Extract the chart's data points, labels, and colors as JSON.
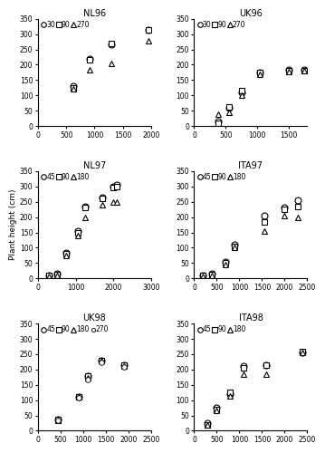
{
  "panels": [
    {
      "title": "NL96",
      "legend_labels": [
        "30",
        "90",
        "270"
      ],
      "markers": [
        "o",
        "s",
        "^"
      ],
      "xlim": [
        0,
        2000
      ],
      "ylim": [
        0,
        350
      ],
      "xticks": [
        0,
        500,
        1000,
        1500,
        2000
      ],
      "yticks": [
        0,
        50,
        100,
        150,
        200,
        250,
        300,
        350
      ],
      "series": [
        {
          "x": [
            620,
            920,
            1300,
            1950
          ],
          "y": [
            130,
            220,
            265,
            315
          ]
        },
        {
          "x": [
            620,
            920,
            1300,
            1950
          ],
          "y": [
            125,
            215,
            270,
            315
          ]
        },
        {
          "x": [
            620,
            920,
            1300,
            1950
          ],
          "y": [
            120,
            185,
            205,
            278
          ]
        }
      ]
    },
    {
      "title": "UK96",
      "legend_labels": [
        "30",
        "90",
        "270"
      ],
      "markers": [
        "o",
        "s",
        "^"
      ],
      "xlim": [
        0,
        1800
      ],
      "ylim": [
        0,
        350
      ],
      "xticks": [
        0,
        500,
        1000,
        1500
      ],
      "yticks": [
        0,
        50,
        100,
        150,
        200,
        250,
        300,
        350
      ],
      "series": [
        {
          "x": [
            380,
            550,
            750,
            1050,
            1500,
            1750
          ],
          "y": [
            15,
            60,
            110,
            175,
            183,
            183
          ]
        },
        {
          "x": [
            380,
            550,
            750,
            1050,
            1500,
            1750
          ],
          "y": [
            10,
            62,
            115,
            175,
            182,
            182
          ]
        },
        {
          "x": [
            380,
            550,
            750,
            1050,
            1500,
            1750
          ],
          "y": [
            40,
            45,
            100,
            170,
            178,
            180
          ]
        }
      ]
    },
    {
      "title": "NL97",
      "legend_labels": [
        "45",
        "90",
        "180"
      ],
      "markers": [
        "o",
        "s",
        "^"
      ],
      "xlim": [
        0,
        3000
      ],
      "ylim": [
        0,
        350
      ],
      "xticks": [
        0,
        1000,
        2000,
        3000
      ],
      "yticks": [
        0,
        50,
        100,
        150,
        200,
        250,
        300,
        350
      ],
      "series": [
        {
          "x": [
            300,
            500,
            750,
            1050,
            1250,
            1700,
            2000,
            2100
          ],
          "y": [
            10,
            15,
            85,
            155,
            235,
            265,
            300,
            305
          ]
        },
        {
          "x": [
            300,
            500,
            750,
            1050,
            1250,
            1700,
            2000,
            2100
          ],
          "y": [
            10,
            12,
            82,
            150,
            230,
            260,
            295,
            300
          ]
        },
        {
          "x": [
            300,
            500,
            750,
            1050,
            1250,
            1700,
            2000,
            2100
          ],
          "y": [
            8,
            10,
            75,
            140,
            200,
            240,
            250,
            248
          ]
        }
      ]
    },
    {
      "title": "ITA97",
      "legend_labels": [
        "45",
        "90",
        "180"
      ],
      "markers": [
        "o",
        "s",
        "^"
      ],
      "xlim": [
        0,
        2500
      ],
      "ylim": [
        0,
        350
      ],
      "xticks": [
        0,
        500,
        1000,
        1500,
        2000,
        2500
      ],
      "yticks": [
        0,
        50,
        100,
        150,
        200,
        250,
        300,
        350
      ],
      "series": [
        {
          "x": [
            200,
            400,
            700,
            900,
            1550,
            2000,
            2300
          ],
          "y": [
            10,
            15,
            55,
            110,
            205,
            230,
            255
          ]
        },
        {
          "x": [
            200,
            400,
            700,
            900,
            1550,
            2000,
            2300
          ],
          "y": [
            10,
            12,
            50,
            105,
            185,
            225,
            235
          ]
        },
        {
          "x": [
            200,
            400,
            700,
            900,
            1550,
            2000,
            2300
          ],
          "y": [
            8,
            10,
            45,
            100,
            155,
            205,
            200
          ]
        }
      ]
    },
    {
      "title": "UK98",
      "legend_labels": [
        "45",
        "90",
        "180",
        "270"
      ],
      "markers": [
        "o",
        "s",
        "^",
        "o"
      ],
      "xlim": [
        0,
        2500
      ],
      "ylim": [
        0,
        350
      ],
      "xticks": [
        0,
        500,
        1000,
        1500,
        2000,
        2500
      ],
      "yticks": [
        0,
        50,
        100,
        150,
        200,
        250,
        300,
        350
      ],
      "series": [
        {
          "x": [
            450,
            900,
            1100,
            1400,
            1900
          ],
          "y": [
            38,
            112,
            178,
            228,
            215
          ]
        },
        {
          "x": [
            450,
            900,
            1100,
            1400,
            1900
          ],
          "y": [
            36,
            110,
            178,
            230,
            215
          ]
        },
        {
          "x": [
            450,
            900,
            1100,
            1400,
            1900
          ],
          "y": [
            35,
            110,
            173,
            228,
            210
          ]
        },
        {
          "x": [
            450,
            900,
            1100,
            1400,
            1900
          ],
          "y": [
            33,
            108,
            168,
            222,
            208
          ]
        }
      ]
    },
    {
      "title": "ITA98",
      "legend_labels": [
        "45",
        "90",
        "180"
      ],
      "markers": [
        "o",
        "s",
        "^"
      ],
      "xlim": [
        0,
        2500
      ],
      "ylim": [
        0,
        350
      ],
      "xticks": [
        0,
        500,
        1000,
        1500,
        2000,
        2500
      ],
      "yticks": [
        0,
        50,
        100,
        150,
        200,
        250,
        300,
        350
      ],
      "series": [
        {
          "x": [
            300,
            500,
            800,
            1100,
            1600,
            2400
          ],
          "y": [
            25,
            75,
            120,
            210,
            215,
            255
          ]
        },
        {
          "x": [
            300,
            500,
            800,
            1100,
            1600,
            2400
          ],
          "y": [
            20,
            70,
            125,
            205,
            215,
            258
          ]
        },
        {
          "x": [
            300,
            500,
            800,
            1100,
            1600,
            2400
          ],
          "y": [
            20,
            65,
            115,
            185,
            185,
            255
          ]
        }
      ]
    }
  ],
  "ylabel": "Plant height (cm)",
  "marker_size": 5,
  "uk98_marker_sizes": [
    5,
    5,
    5,
    4
  ],
  "legend_marker_size": 4
}
